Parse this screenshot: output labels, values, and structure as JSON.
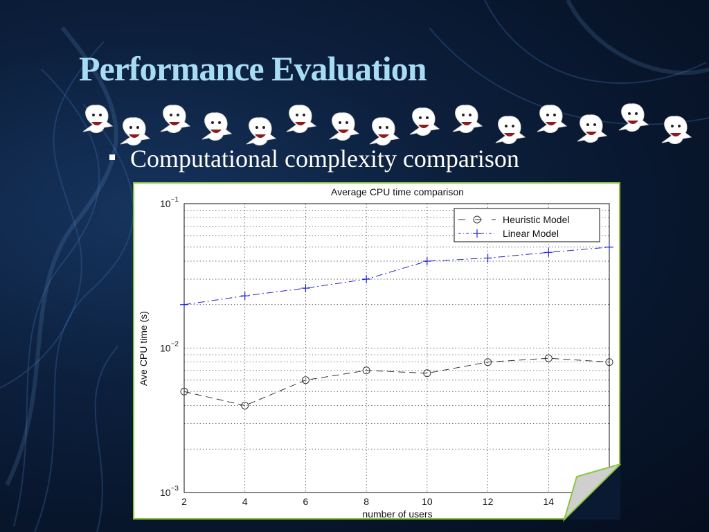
{
  "slide": {
    "title": "Performance Evaluation",
    "bullet": "Computational complexity comparison",
    "icons": [
      "ghost-icon"
    ]
  },
  "colors": {
    "title": "#a8dcf4",
    "frame": "#8cc63f",
    "heuristic": "#333333",
    "linear": "#2323d6"
  },
  "chart_data": {
    "type": "line",
    "title": "Average CPU time comparison",
    "xlabel": "number of users",
    "ylabel": "Ave CPU time (s)",
    "x": [
      2,
      4,
      6,
      8,
      10,
      12,
      14,
      16
    ],
    "xlim": [
      2,
      16
    ],
    "ylim": [
      0.001,
      0.1
    ],
    "yscale": "log",
    "grid": true,
    "legend_position": "top-right",
    "xticks": [
      "2",
      "4",
      "6",
      "8",
      "10",
      "12",
      "14"
    ],
    "series": [
      {
        "name": "Heuristic Model",
        "marker": "circle",
        "linestyle": "dashed",
        "values": [
          0.005,
          0.004,
          0.006,
          0.007,
          0.0067,
          0.008,
          0.0085,
          0.008
        ]
      },
      {
        "name": "Linear Model",
        "marker": "plus",
        "linestyle": "dashdot",
        "values": [
          0.02,
          0.023,
          0.026,
          0.03,
          0.04,
          0.042,
          0.046,
          0.05
        ]
      }
    ]
  }
}
